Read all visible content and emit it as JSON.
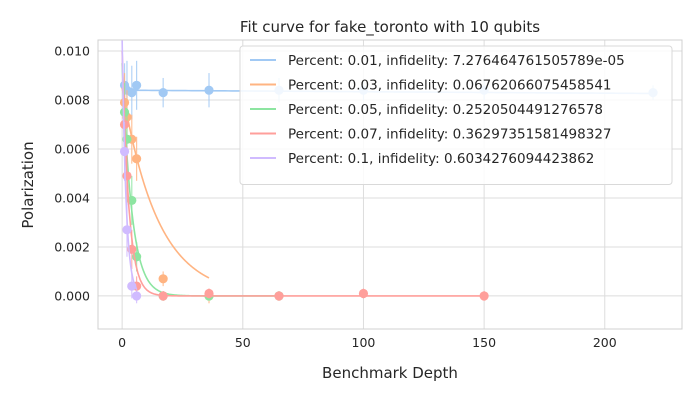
{
  "chart_data": {
    "type": "scatter",
    "title": "Fit curve for fake_toronto with 10 qubits",
    "xlabel": "Benchmark Depth",
    "ylabel": "Polarization",
    "xlim": [
      -10,
      232
    ],
    "ylim": [
      -0.00135,
      0.01045
    ],
    "xticks": [
      0,
      50,
      100,
      150,
      200
    ],
    "yticks": [
      0.0,
      0.002,
      0.004,
      0.006,
      0.008,
      0.01
    ],
    "xtick_labels": [
      "0",
      "50",
      "100",
      "150",
      "200"
    ],
    "ytick_labels": [
      "0.000",
      "0.002",
      "0.004",
      "0.006",
      "0.008",
      "0.010"
    ],
    "grid": true,
    "legend_position": "top-right",
    "series": [
      {
        "name": "Percent: 0.01, infidelity: 7.276464761505789e-05",
        "color": "#a1c9f4",
        "x": [
          1,
          2,
          4,
          6,
          17,
          36,
          65,
          100,
          150,
          220
        ],
        "y": [
          0.0086,
          0.0084,
          0.0083,
          0.0086,
          0.0083,
          0.0084,
          0.0084,
          0.0084,
          0.0084,
          0.0083
        ],
        "err": [
          0.0009,
          0.0012,
          0.0011,
          0.001,
          0.0006,
          0.0007,
          0.0005,
          0.0004,
          0.0004,
          0.0003
        ],
        "fit": {
          "amp": 0.0084,
          "rate": 7.28e-05,
          "offset": 0.0,
          "xmax": 220
        }
      },
      {
        "name": "Percent: 0.03, infidelity: 0.06762066075458541",
        "color": "#ffb482",
        "x": [
          1,
          2,
          4,
          6,
          17,
          36
        ],
        "y": [
          0.0079,
          0.0073,
          0.0064,
          0.0056,
          0.0007,
          0.0
        ],
        "err": [
          0.0012,
          0.0011,
          0.001,
          0.0009,
          0.0003,
          0.0003
        ],
        "fit": {
          "amp": 0.0085,
          "rate": 0.068,
          "offset": 0.0,
          "xmax": 36
        }
      },
      {
        "name": "Percent: 0.05, infidelity: 0.2520504491276578",
        "color": "#8de5a1",
        "x": [
          1,
          2,
          4,
          6,
          17,
          36,
          65
        ],
        "y": [
          0.0075,
          0.0064,
          0.0039,
          0.0016,
          0.0,
          0.0,
          0.0
        ],
        "err": [
          0.0012,
          0.0012,
          0.001,
          0.0006,
          0.0002,
          0.0002,
          0.0002
        ],
        "fit": {
          "amp": 0.0095,
          "rate": 0.252,
          "offset": 0.0,
          "xmax": 65
        }
      },
      {
        "name": "Percent: 0.07, infidelity: 0.36297351581498327",
        "color": "#ff9f9b",
        "x": [
          1,
          2,
          4,
          6,
          17,
          36,
          65,
          100,
          150
        ],
        "y": [
          0.007,
          0.0049,
          0.0019,
          0.0004,
          0.0,
          0.0001,
          0.0,
          0.0001,
          0.0
        ],
        "err": [
          0.0012,
          0.0012,
          0.0008,
          0.0004,
          0.0002,
          0.0002,
          0.0002,
          0.0002,
          0.0002
        ],
        "fit": {
          "amp": 0.01,
          "rate": 0.363,
          "offset": 0.0,
          "xmax": 150
        }
      },
      {
        "name": "Percent: 0.1, infidelity: 0.6034276094423862",
        "color": "#d0bbff",
        "x": [
          1,
          2,
          4,
          6
        ],
        "y": [
          0.0059,
          0.0027,
          0.0004,
          0.0
        ],
        "err": [
          0.0012,
          0.0011,
          0.0005,
          0.0003
        ],
        "fit": {
          "amp": 0.0105,
          "rate": 0.603,
          "offset": 0.0,
          "xmax": 6
        }
      }
    ]
  }
}
